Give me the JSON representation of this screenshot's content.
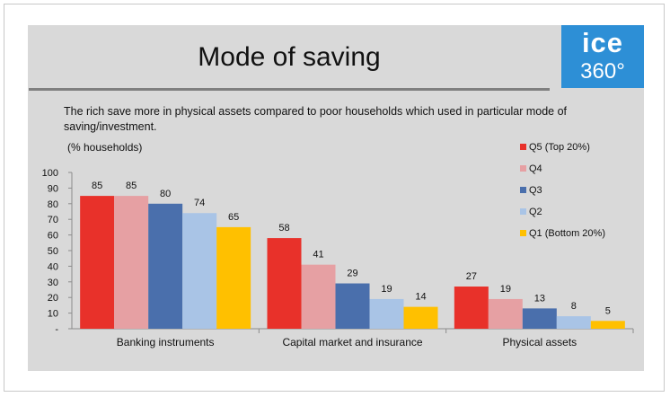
{
  "title": "Mode of saving",
  "logo": {
    "top": "ice",
    "bottom": "360°"
  },
  "subtitle": "The rich save more in physical assets compared to poor households which used in particular mode of saving/investment.",
  "unit_label": "(% households)",
  "chart_data": {
    "type": "bar",
    "categories": [
      "Banking instruments",
      "Capital market and insurance",
      "Physical assets"
    ],
    "series": [
      {
        "name": "Q5 (Top 20%)",
        "color": "#e8312a",
        "values": [
          85,
          58,
          27
        ]
      },
      {
        "name": "Q4",
        "color": "#e6a0a3",
        "values": [
          85,
          41,
          19
        ]
      },
      {
        "name": "Q3",
        "color": "#4a6fac",
        "values": [
          80,
          29,
          13
        ]
      },
      {
        "name": "Q2",
        "color": "#a9c4e6",
        "values": [
          74,
          19,
          8
        ]
      },
      {
        "name": "Q1 (Bottom 20%)",
        "color": "#ffc000",
        "values": [
          65,
          14,
          5
        ]
      }
    ],
    "ylim": [
      0,
      100
    ],
    "yticks": [
      "-",
      "10",
      "20",
      "30",
      "40",
      "50",
      "60",
      "70",
      "80",
      "90",
      "100"
    ],
    "legend": "right",
    "grid": false,
    "data_labels": true
  }
}
